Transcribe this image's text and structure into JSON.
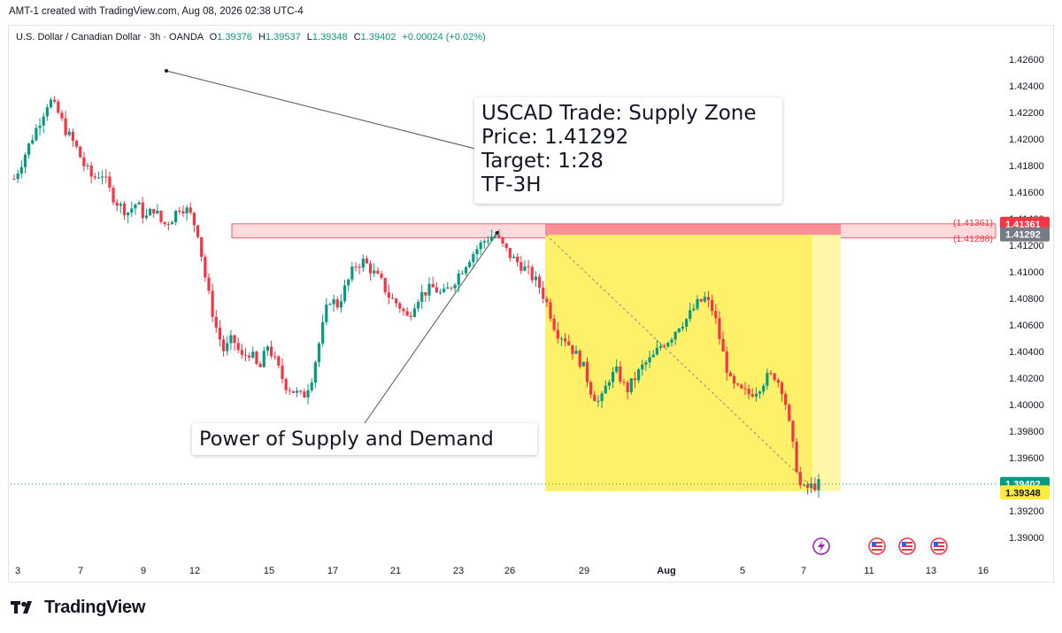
{
  "header": {
    "text": "AMT-1 created with TradingView.com, Aug 08, 2026 02:38 UTC-4"
  },
  "legend": {
    "symbol": "U.S. Dollar / Canadian Dollar · 3h · OANDA",
    "open_label": "O",
    "open": "1.39376",
    "high_label": "H",
    "high": "1.39537",
    "low_label": "L",
    "low": "1.39348",
    "close_label": "C",
    "close": "1.39402",
    "change": "+0.00024 (+0.02%)"
  },
  "callouts": {
    "trade": [
      "USCAD Trade: Supply Zone",
      "Price: 1.41292",
      "Target: 1:28",
      "TF-3H"
    ],
    "power": "Power of Supply and Demand"
  },
  "footer": {
    "brand": "TradingView"
  },
  "colors": {
    "up": "#089981",
    "down": "#f23645",
    "zone": "#f23645",
    "target": "#ffeb3b",
    "price_tag": "#089981"
  },
  "chart_data": {
    "type": "candlestick",
    "symbol": "USDCAD",
    "timeframe": "3h",
    "ylim": [
      1.389,
      1.427
    ],
    "y_ticks": [
      "1.42600",
      "1.42400",
      "1.42200",
      "1.42000",
      "1.41800",
      "1.41600",
      "1.41400",
      "1.41200",
      "1.41000",
      "1.40800",
      "1.40600",
      "1.40400",
      "1.40200",
      "1.40000",
      "1.39800",
      "1.39600",
      "1.39400",
      "1.39200",
      "1.39000"
    ],
    "x_ticks": [
      "3",
      "7",
      "9",
      "12",
      "15",
      "17",
      "21",
      "23",
      "26",
      "29",
      "Aug",
      "5",
      "7",
      "11",
      "13",
      "16"
    ],
    "supply_zone": {
      "top": 1.41361,
      "bottom": 1.41288,
      "top_label": "(1.41361)",
      "bottom_label": "(1.41288)",
      "top_tag": "1.41361",
      "bottom_tag": "1.41292"
    },
    "target_box": {
      "entry": 1.41292,
      "target": 1.39348,
      "target_tag": "1.39348"
    },
    "last_price": {
      "value": 1.39402,
      "tag": "1.39402"
    },
    "path": [
      1.417,
      1.4185,
      1.42,
      1.4215,
      1.423,
      1.422,
      1.4205,
      1.4195,
      1.418,
      1.417,
      1.4175,
      1.416,
      1.415,
      1.4145,
      1.4152,
      1.414,
      1.4148,
      1.4135,
      1.414,
      1.415,
      1.4145,
      1.413,
      1.409,
      1.406,
      1.404,
      1.405,
      1.4035,
      1.404,
      1.4025,
      1.4045,
      1.403,
      1.4015,
      1.401,
      1.4005,
      1.402,
      1.405,
      1.408,
      1.4075,
      1.409,
      1.4105,
      1.4108,
      1.41,
      1.4092,
      1.408,
      1.4075,
      1.4065,
      1.408,
      1.4085,
      1.4088,
      1.4082,
      1.409,
      1.41,
      1.411,
      1.4118,
      1.4125,
      1.4128,
      1.4118,
      1.411,
      1.4105,
      1.4098,
      1.409,
      1.4075,
      1.4055,
      1.405,
      1.404,
      1.403,
      1.401,
      1.4,
      1.402,
      1.4025,
      1.401,
      1.402,
      1.403,
      1.4035,
      1.4045,
      1.405,
      1.406,
      1.4065,
      1.4075,
      1.408,
      1.407,
      1.404,
      1.4015,
      1.401,
      1.4008,
      1.4012,
      1.402,
      1.4022,
      1.401,
      1.397,
      1.3935,
      1.3938,
      1.394
    ]
  }
}
